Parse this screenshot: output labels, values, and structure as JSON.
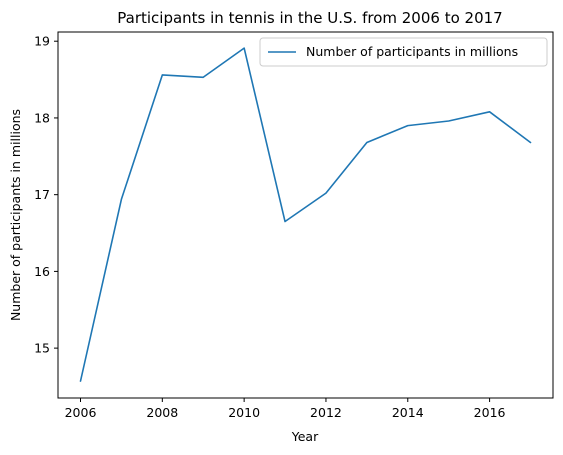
{
  "chart_data": {
    "type": "line",
    "title": "Participants in tennis in the U.S. from 2006 to 2017",
    "xlabel": "Year",
    "ylabel": "Number of participants in millions",
    "x": [
      2006,
      2007,
      2008,
      2009,
      2010,
      2011,
      2012,
      2013,
      2014,
      2015,
      2016,
      2017
    ],
    "series": [
      {
        "name": "Number of participants in millions",
        "color": "#1f77b4",
        "values": [
          14.57,
          16.94,
          18.56,
          18.53,
          18.91,
          16.65,
          17.02,
          17.68,
          17.9,
          17.96,
          18.08,
          17.68
        ]
      }
    ],
    "xlim": [
      2005.45,
      2017.55
    ],
    "ylim": [
      14.35,
      19.12
    ],
    "xticks": [
      2006,
      2008,
      2010,
      2012,
      2014,
      2016
    ],
    "yticks": [
      15,
      16,
      17,
      18,
      19
    ],
    "grid": false,
    "legend_position": "upper right"
  }
}
